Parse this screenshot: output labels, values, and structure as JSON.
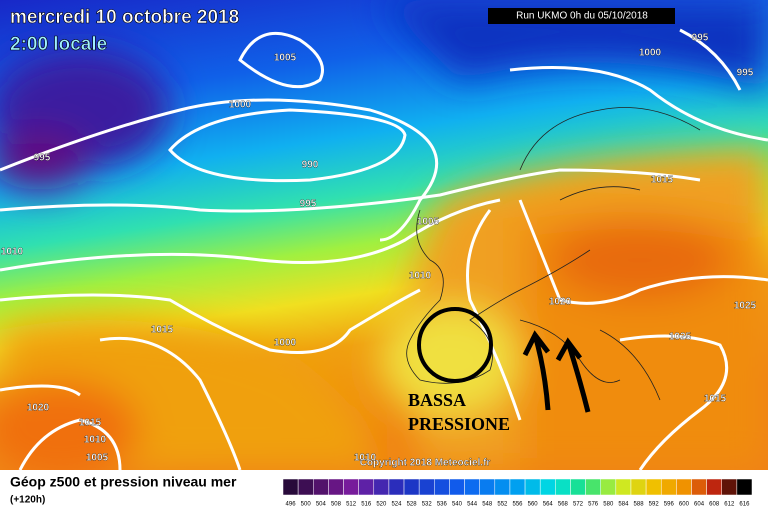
{
  "header": {
    "title": "mercredi 10 octobre 2018",
    "time": "2:00 locale",
    "run": "Run UKMO 0h du 05/10/2018"
  },
  "isobar_labels": [
    "1005",
    "995",
    "995",
    "1000",
    "1000",
    "995",
    "990",
    "995",
    "1005",
    "1015",
    "1010",
    "1010",
    "1020",
    "1025",
    "1015",
    "1000",
    "1025",
    "1015",
    "1020",
    "1015",
    "1010",
    "1005",
    "1010"
  ],
  "annotation": {
    "line1": "BASSA",
    "line2": "PRESSIONE"
  },
  "copyright": "Copyright 2018 Meteociel.fr",
  "footer": {
    "title": "Géop z500 et pression niveau mer",
    "lead": "(+120h)"
  },
  "scale_labels": [
    496,
    500,
    504,
    508,
    512,
    516,
    520,
    524,
    528,
    532,
    536,
    540,
    544,
    548,
    552,
    556,
    560,
    564,
    568,
    572,
    576,
    580,
    584,
    588,
    592,
    596,
    600,
    604,
    608,
    612,
    616
  ]
}
